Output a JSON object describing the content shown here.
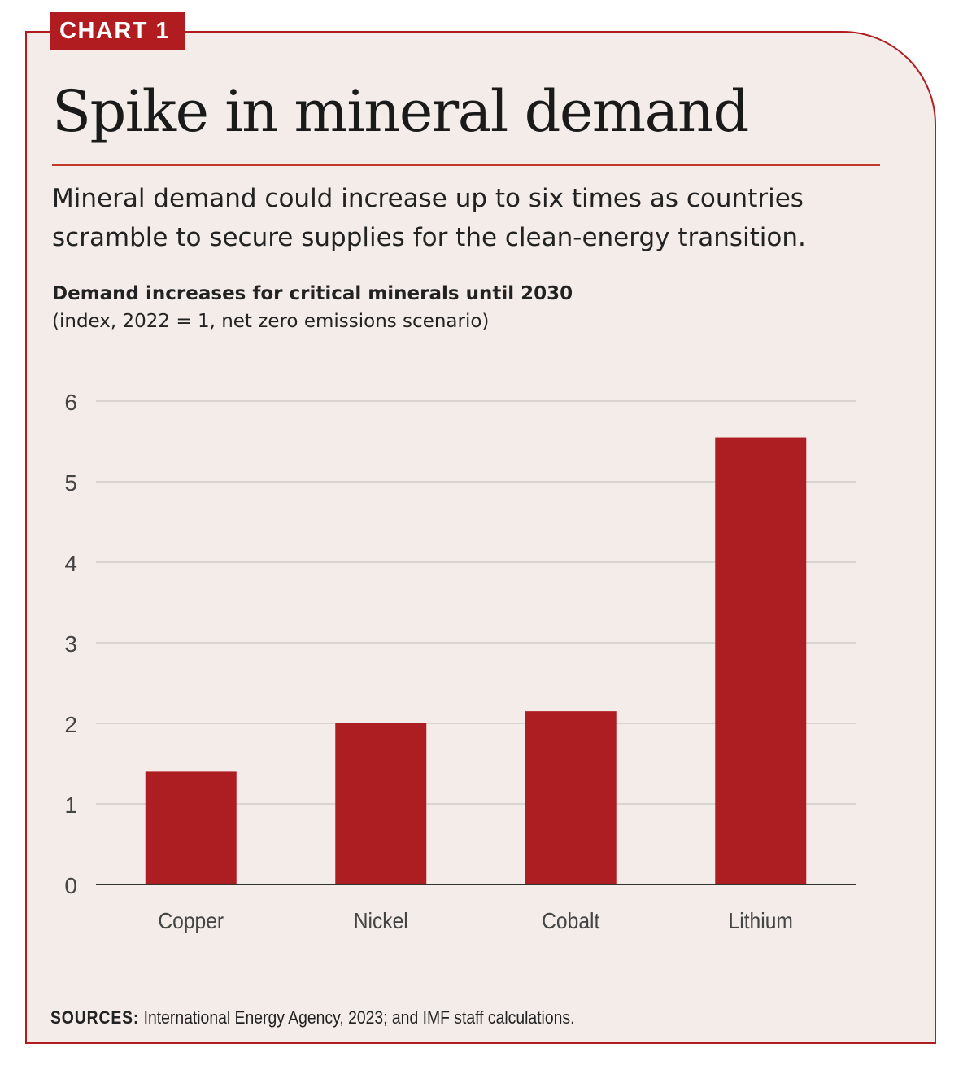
{
  "tag": "CHART 1",
  "title": "Spike in mineral demand",
  "subtitle": "Mineral demand could increase up to six times as countries scramble to secure supplies for the clean-energy transition.",
  "sources_label": "SOURCES:",
  "sources_text": " International Energy Agency, 2023; and IMF staff calculations.",
  "colors": {
    "accent": "#b01c20",
    "background": "#f4ece8",
    "bar": "#ad1e23",
    "grid": "#d9d4d2"
  },
  "chart_data": {
    "type": "bar",
    "title": "Demand increases for critical minerals until 2030",
    "subtitle": "(index, 2022 = 1, net zero emissions scenario)",
    "categories": [
      "Copper",
      "Nickel",
      "Cobalt",
      "Lithium"
    ],
    "values": [
      1.4,
      2.0,
      2.15,
      5.55
    ],
    "ylim": [
      0,
      6
    ],
    "yticks": [
      "0",
      "1",
      "2",
      "3",
      "4",
      "5",
      "6"
    ],
    "grid": true
  }
}
